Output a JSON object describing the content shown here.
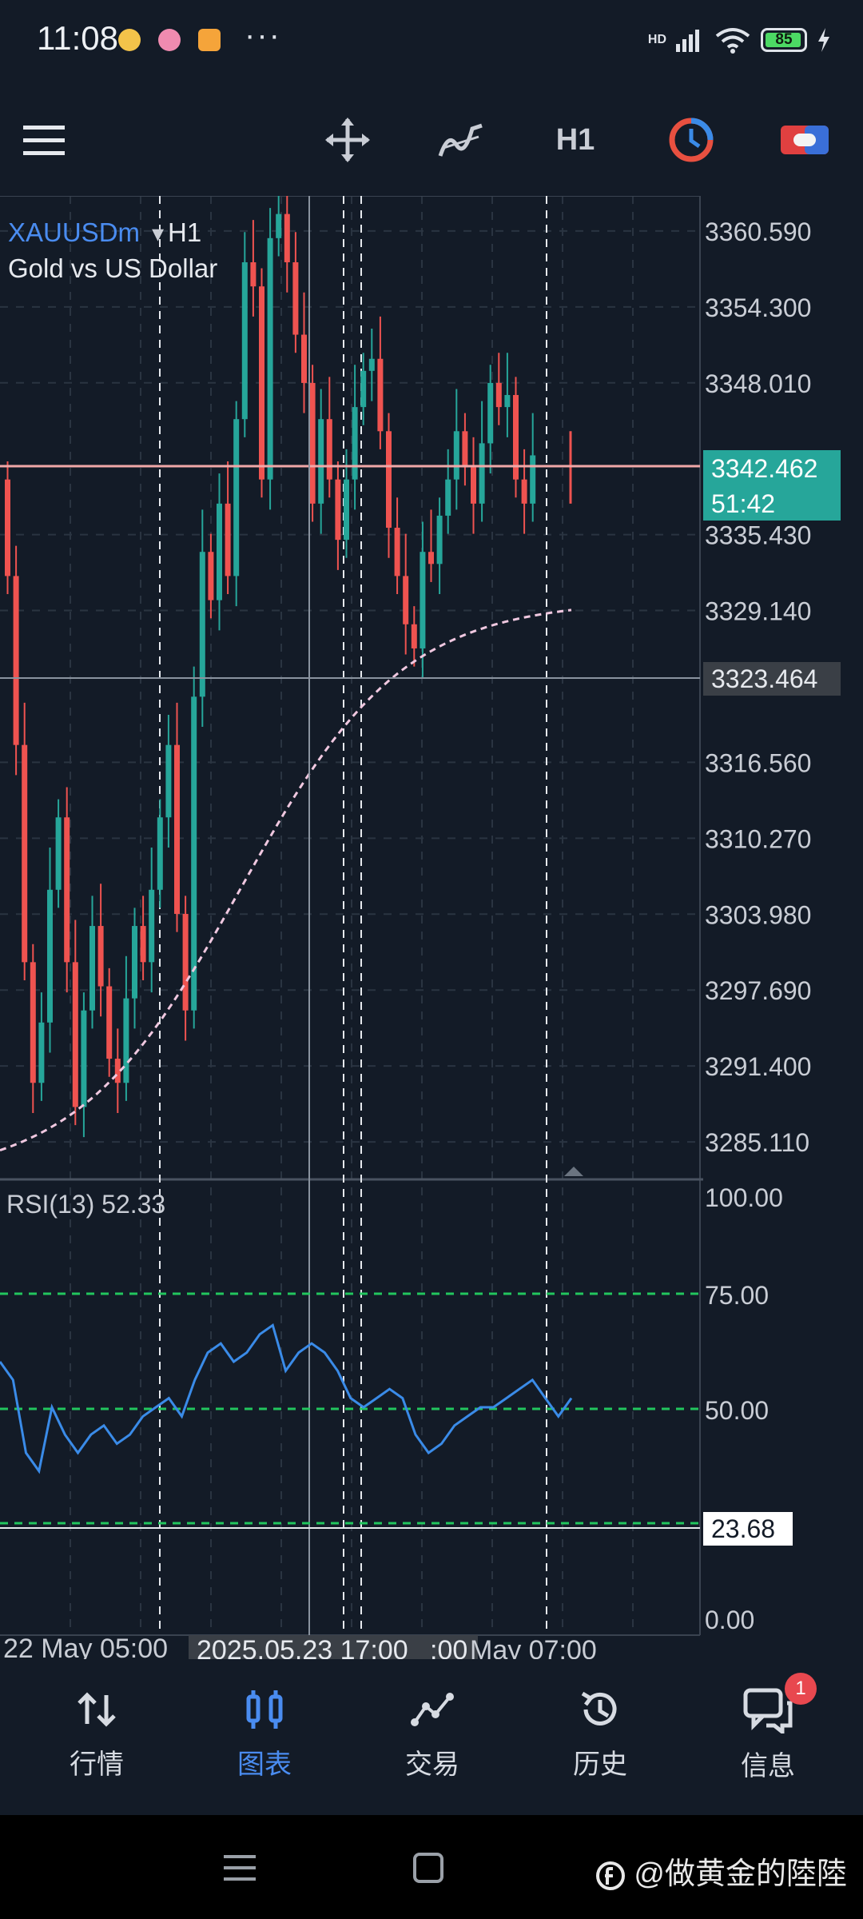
{
  "status_bar": {
    "time": "11:08",
    "battery": "85",
    "dots": "···",
    "network": "HD"
  },
  "toolbar": {
    "timeframe": "H1"
  },
  "chart": {
    "symbol": "XAUUSDm",
    "timeframe": "H1",
    "description": "Gold vs US Dollar",
    "price_labels": [
      "3360.590",
      "3354.300",
      "3348.010",
      "3335.430",
      "3329.140",
      "3316.560",
      "3310.270",
      "3303.980",
      "3297.690",
      "3291.400",
      "3285.110"
    ],
    "bid_label": "3342.462",
    "countdown": "51:42",
    "crosshair_price": "3323.464",
    "rsi_label": "RSI(13) 52.33",
    "rsi_levels": [
      "100.00",
      "75.00",
      "50.00",
      "0.00"
    ],
    "rsi_crosshair": "23.68",
    "time_left": "22 May 05:00",
    "time_cursor": "2025.05.23 17:00",
    "time_cursor_tail": ":00",
    "time_right": "May 07:00"
  },
  "nav": [
    {
      "label": "行情",
      "icon": "quotes-icon"
    },
    {
      "label": "图表",
      "icon": "chart-icon"
    },
    {
      "label": "交易",
      "icon": "trade-icon"
    },
    {
      "label": "历史",
      "icon": "history-icon"
    },
    {
      "label": "信息",
      "icon": "messages-icon"
    }
  ],
  "messages_badge": "1",
  "watermark": "@做黄金的陸陸",
  "colors": {
    "bull": "#26a69a",
    "bear": "#ef5350",
    "rsi": "#3a8be8",
    "level": "#22c55e",
    "bid": "#26a69a"
  }
}
